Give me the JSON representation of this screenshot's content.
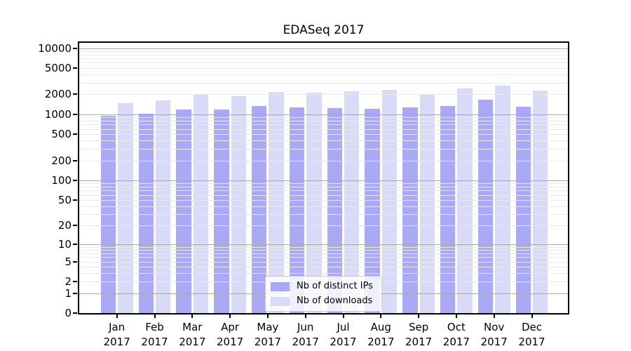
{
  "title": "EDASeq 2017",
  "chart_data": {
    "type": "bar",
    "title": "EDASeq 2017",
    "categories": [
      "Jan",
      "Feb",
      "Mar",
      "Apr",
      "May",
      "Jun",
      "Jul",
      "Aug",
      "Sep",
      "Oct",
      "Nov",
      "Dec"
    ],
    "year_label": "2017",
    "series": [
      {
        "name": "Nb of distinct IPs",
        "color": "#a9a9f5",
        "values": [
          940,
          1010,
          1170,
          1170,
          1350,
          1280,
          1250,
          1220,
          1270,
          1350,
          1660,
          1300
        ]
      },
      {
        "name": "Nb of downloads",
        "color": "#d9d9f8",
        "values": [
          1480,
          1620,
          1970,
          1860,
          2190,
          2140,
          2240,
          2340,
          2020,
          2440,
          2700,
          2300
        ]
      }
    ],
    "yscale": "log10(value+1)",
    "yticks": [
      0,
      1,
      2,
      5,
      10,
      20,
      50,
      100,
      200,
      500,
      1000,
      2000,
      5000,
      10000
    ],
    "major_grid_values": [
      1,
      10,
      100,
      1000,
      10000
    ],
    "ylim": [
      0,
      12000
    ],
    "xlabel": "",
    "ylabel": "",
    "grid": "horizontal, log minors faint + decades dark, drawn over bars",
    "legend_position": "lower center",
    "colors": {
      "major_gridline": "#a8a8a8",
      "minor_gridline": "#e9e9e9",
      "axis_spine": "#000000",
      "background": "#ffffff"
    }
  }
}
